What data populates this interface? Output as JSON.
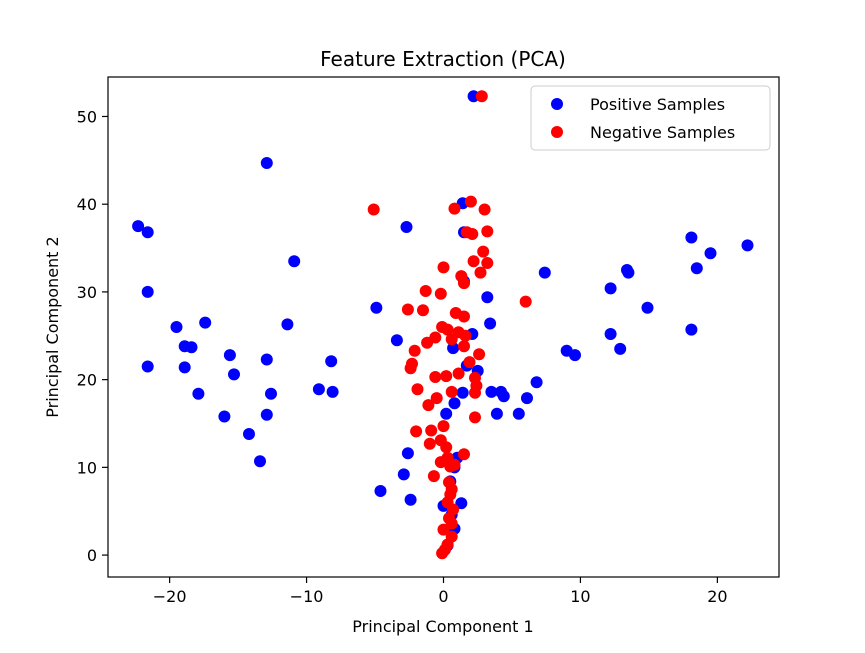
{
  "chart_data": {
    "type": "scatter",
    "title": "Feature Extraction (PCA)",
    "xlabel": "Principal Component 1",
    "ylabel": "Principal Component 2",
    "xlim": [
      -24.5,
      24.5
    ],
    "ylim": [
      -2.5,
      54.5
    ],
    "xticks": [
      -20,
      -10,
      0,
      10,
      20
    ],
    "xtick_labels": [
      "−20",
      "−10",
      "0",
      "10",
      "20"
    ],
    "yticks": [
      0,
      10,
      20,
      30,
      40,
      50
    ],
    "ytick_labels": [
      "0",
      "10",
      "20",
      "30",
      "40",
      "50"
    ],
    "grid": false,
    "legend_position": "top-right",
    "series": [
      {
        "name": "Positive Samples",
        "color": "#0000ff",
        "points": [
          [
            2.2,
            52.3
          ],
          [
            -12.9,
            44.7
          ],
          [
            -22.3,
            37.5
          ],
          [
            -21.6,
            36.8
          ],
          [
            -21.6,
            30.0
          ],
          [
            -10.9,
            33.5
          ],
          [
            -17.4,
            26.5
          ],
          [
            -19.5,
            26.0
          ],
          [
            -11.4,
            26.3
          ],
          [
            -18.9,
            23.8
          ],
          [
            -18.4,
            23.7
          ],
          [
            -15.6,
            22.8
          ],
          [
            -12.9,
            22.3
          ],
          [
            -21.6,
            21.5
          ],
          [
            -18.9,
            21.4
          ],
          [
            -15.3,
            20.6
          ],
          [
            -17.9,
            18.4
          ],
          [
            -12.6,
            18.4
          ],
          [
            -9.1,
            18.9
          ],
          [
            -8.2,
            22.1
          ],
          [
            -8.1,
            18.6
          ],
          [
            -16.0,
            15.8
          ],
          [
            -12.9,
            16.0
          ],
          [
            -14.2,
            13.8
          ],
          [
            -13.4,
            10.7
          ],
          [
            -2.7,
            37.4
          ],
          [
            -4.9,
            28.2
          ],
          [
            -3.4,
            24.5
          ],
          [
            -4.6,
            7.3
          ],
          [
            -2.6,
            11.6
          ],
          [
            -2.9,
            9.2
          ],
          [
            -2.4,
            6.3
          ],
          [
            1.4,
            40.1
          ],
          [
            1.5,
            36.8
          ],
          [
            1.5,
            31.2
          ],
          [
            3.2,
            29.4
          ],
          [
            3.4,
            26.4
          ],
          [
            2.1,
            25.2
          ],
          [
            0.7,
            23.6
          ],
          [
            1.7,
            21.6
          ],
          [
            2.5,
            21.0
          ],
          [
            1.4,
            18.5
          ],
          [
            0.8,
            17.3
          ],
          [
            0.2,
            16.1
          ],
          [
            3.5,
            18.6
          ],
          [
            4.2,
            18.6
          ],
          [
            4.4,
            18.1
          ],
          [
            3.9,
            16.1
          ],
          [
            5.5,
            16.1
          ],
          [
            6.1,
            17.9
          ],
          [
            6.8,
            19.7
          ],
          [
            7.4,
            32.2
          ],
          [
            9.0,
            23.3
          ],
          [
            9.6,
            22.8
          ],
          [
            12.2,
            30.4
          ],
          [
            13.4,
            32.5
          ],
          [
            13.5,
            32.2
          ],
          [
            14.9,
            28.2
          ],
          [
            12.2,
            25.2
          ],
          [
            12.9,
            23.5
          ],
          [
            18.1,
            36.2
          ],
          [
            19.5,
            34.4
          ],
          [
            22.2,
            35.3
          ],
          [
            18.5,
            32.7
          ],
          [
            18.1,
            25.7
          ],
          [
            1.0,
            11.1
          ],
          [
            0.8,
            10.0
          ],
          [
            0.5,
            8.4
          ],
          [
            1.3,
            5.9
          ],
          [
            0.0,
            5.6
          ],
          [
            0.6,
            4.6
          ],
          [
            0.8,
            3.0
          ],
          [
            0.3,
            1.1
          ]
        ]
      },
      {
        "name": "Negative Samples",
        "color": "#ff0000",
        "points": [
          [
            2.8,
            52.3
          ],
          [
            -5.1,
            39.4
          ],
          [
            2.0,
            40.3
          ],
          [
            0.8,
            39.5
          ],
          [
            3.0,
            39.4
          ],
          [
            1.7,
            36.8
          ],
          [
            2.1,
            36.6
          ],
          [
            3.2,
            36.9
          ],
          [
            2.9,
            34.6
          ],
          [
            2.2,
            33.5
          ],
          [
            3.2,
            33.3
          ],
          [
            0.0,
            32.8
          ],
          [
            1.3,
            31.8
          ],
          [
            2.7,
            32.2
          ],
          [
            1.5,
            31.0
          ],
          [
            -1.3,
            30.1
          ],
          [
            -0.2,
            29.8
          ],
          [
            6.0,
            28.9
          ],
          [
            -2.6,
            28.0
          ],
          [
            -1.5,
            27.9
          ],
          [
            0.9,
            27.6
          ],
          [
            1.5,
            27.2
          ],
          [
            -0.1,
            26.0
          ],
          [
            0.3,
            25.7
          ],
          [
            1.1,
            25.4
          ],
          [
            1.6,
            25.0
          ],
          [
            -0.6,
            24.8
          ],
          [
            -1.2,
            24.2
          ],
          [
            0.6,
            24.6
          ],
          [
            1.5,
            23.8
          ],
          [
            2.6,
            22.9
          ],
          [
            -2.1,
            23.3
          ],
          [
            -2.3,
            21.8
          ],
          [
            -2.4,
            21.3
          ],
          [
            1.9,
            22.0
          ],
          [
            2.3,
            20.2
          ],
          [
            0.2,
            20.4
          ],
          [
            1.1,
            20.7
          ],
          [
            -0.6,
            20.3
          ],
          [
            2.4,
            19.3
          ],
          [
            -1.9,
            18.9
          ],
          [
            0.6,
            18.6
          ],
          [
            -0.5,
            17.9
          ],
          [
            2.3,
            18.5
          ],
          [
            -1.1,
            17.1
          ],
          [
            2.3,
            15.7
          ],
          [
            -2.0,
            14.1
          ],
          [
            0.0,
            14.7
          ],
          [
            -0.9,
            14.2
          ],
          [
            -1.0,
            12.7
          ],
          [
            -0.2,
            13.1
          ],
          [
            0.2,
            12.3
          ],
          [
            1.5,
            11.5
          ],
          [
            0.3,
            11.1
          ],
          [
            -0.2,
            10.6
          ],
          [
            0.8,
            10.3
          ],
          [
            0.5,
            10.1
          ],
          [
            -0.7,
            9.0
          ],
          [
            0.4,
            8.3
          ],
          [
            0.6,
            7.5
          ],
          [
            0.5,
            6.9
          ],
          [
            0.3,
            6.0
          ],
          [
            0.7,
            5.2
          ],
          [
            0.4,
            4.2
          ],
          [
            0.6,
            3.6
          ],
          [
            0.0,
            2.9
          ],
          [
            0.6,
            2.1
          ],
          [
            0.3,
            1.2
          ],
          [
            0.1,
            0.6
          ],
          [
            -0.1,
            0.2
          ]
        ]
      }
    ]
  }
}
